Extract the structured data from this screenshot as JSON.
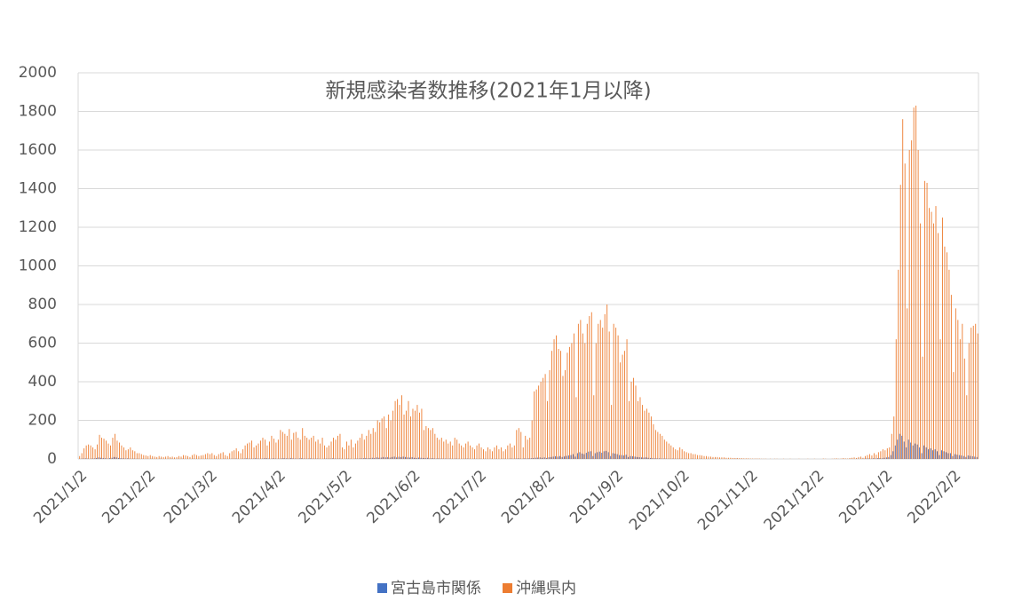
{
  "chart_data": {
    "type": "bar",
    "title": "新規感染者数推移(2021年1月以降)",
    "categories": [
      "2021/1/2",
      null,
      null,
      null,
      null,
      null,
      null,
      null,
      null,
      null,
      null,
      null,
      null,
      null,
      null,
      null,
      null,
      null,
      null,
      null,
      null,
      null,
      null,
      null,
      null,
      null,
      null,
      null,
      null,
      null,
      null,
      "2021/2/2",
      null,
      null,
      null,
      null,
      null,
      null,
      null,
      null,
      null,
      null,
      null,
      null,
      null,
      null,
      null,
      null,
      null,
      null,
      null,
      null,
      null,
      null,
      null,
      null,
      null,
      null,
      null,
      "2021/3/2",
      null,
      null,
      null,
      null,
      null,
      null,
      null,
      null,
      null,
      null,
      null,
      null,
      null,
      null,
      null,
      null,
      null,
      null,
      null,
      null,
      null,
      null,
      null,
      null,
      null,
      null,
      null,
      null,
      null,
      null,
      "2021/4/2",
      null,
      null,
      null,
      null,
      null,
      null,
      null,
      null,
      null,
      null,
      null,
      null,
      null,
      null,
      null,
      null,
      null,
      null,
      null,
      null,
      null,
      null,
      null,
      null,
      null,
      null,
      null,
      null,
      null,
      "2021/5/2",
      null,
      null,
      null,
      null,
      null,
      null,
      null,
      null,
      null,
      null,
      null,
      null,
      null,
      null,
      null,
      null,
      null,
      null,
      null,
      null,
      null,
      null,
      null,
      null,
      null,
      null,
      null,
      null,
      null,
      null,
      "2021/6/2",
      null,
      null,
      null,
      null,
      null,
      null,
      null,
      null,
      null,
      null,
      null,
      null,
      null,
      null,
      null,
      null,
      null,
      null,
      null,
      null,
      null,
      null,
      null,
      null,
      null,
      null,
      null,
      null,
      null,
      "2021/7/2",
      null,
      null,
      null,
      null,
      null,
      null,
      null,
      null,
      null,
      null,
      null,
      null,
      null,
      null,
      null,
      null,
      null,
      null,
      null,
      null,
      null,
      null,
      null,
      null,
      null,
      null,
      null,
      null,
      null,
      null,
      "2021/8/2",
      null,
      null,
      null,
      null,
      null,
      null,
      null,
      null,
      null,
      null,
      null,
      null,
      null,
      null,
      null,
      null,
      null,
      null,
      null,
      null,
      null,
      null,
      null,
      null,
      null,
      null,
      null,
      null,
      null,
      null,
      "2021/9/2",
      null,
      null,
      null,
      null,
      null,
      null,
      null,
      null,
      null,
      null,
      null,
      null,
      null,
      null,
      null,
      null,
      null,
      null,
      null,
      null,
      null,
      null,
      null,
      null,
      null,
      null,
      null,
      null,
      null,
      "2021/10/2",
      null,
      null,
      null,
      null,
      null,
      null,
      null,
      null,
      null,
      null,
      null,
      null,
      null,
      null,
      null,
      null,
      null,
      null,
      null,
      null,
      null,
      null,
      null,
      null,
      null,
      null,
      null,
      null,
      null,
      null,
      "2021/11/2",
      null,
      null,
      null,
      null,
      null,
      null,
      null,
      null,
      null,
      null,
      null,
      null,
      null,
      null,
      null,
      null,
      null,
      null,
      null,
      null,
      null,
      null,
      null,
      null,
      null,
      null,
      null,
      null,
      null,
      "2021/12/2",
      null,
      null,
      null,
      null,
      null,
      null,
      null,
      null,
      null,
      null,
      null,
      null,
      null,
      null,
      null,
      null,
      null,
      null,
      null,
      null,
      null,
      null,
      null,
      null,
      null,
      null,
      null,
      null,
      null,
      null,
      "2022/1/2",
      null,
      null,
      null,
      null,
      null,
      null,
      null,
      null,
      null,
      null,
      null,
      null,
      null,
      null,
      null,
      null,
      null,
      null,
      null,
      null,
      null,
      null,
      null,
      null,
      null,
      null,
      null,
      null,
      null,
      null,
      "2022/2/2",
      null,
      null,
      null,
      null,
      null,
      null,
      null,
      null,
      null,
      null,
      null
    ],
    "series": [
      {
        "name": "宮古島市関係",
        "color": "#4472c4",
        "values": [
          0,
          1,
          2,
          3,
          2,
          1,
          2,
          3,
          5,
          8,
          6,
          5,
          3,
          2,
          4,
          6,
          10,
          8,
          5,
          4,
          3,
          2,
          3,
          2,
          1,
          2,
          1,
          1,
          0,
          1,
          0,
          0,
          0,
          1,
          0,
          0,
          0,
          1,
          0,
          0,
          0,
          0,
          1,
          0,
          0,
          0,
          0,
          1,
          0,
          0,
          0,
          0,
          1,
          0,
          0,
          0,
          0,
          0,
          1,
          0,
          0,
          0,
          1,
          0,
          0,
          0,
          1,
          0,
          0,
          1,
          1,
          2,
          1,
          0,
          1,
          2,
          3,
          2,
          1,
          2,
          3,
          2,
          1,
          2,
          3,
          4,
          2,
          1,
          3,
          2,
          1,
          2,
          3,
          4,
          3,
          2,
          5,
          3,
          2,
          1,
          3,
          4,
          2,
          1,
          2,
          3,
          2,
          1,
          2,
          1,
          0,
          1,
          2,
          1,
          2,
          3,
          2,
          1,
          2,
          1,
          0,
          1,
          2,
          1,
          0,
          1,
          2,
          2,
          3,
          4,
          5,
          3,
          4,
          6,
          5,
          8,
          6,
          7,
          10,
          8,
          9,
          7,
          10,
          12,
          8,
          11,
          9,
          12,
          10,
          8,
          7,
          9,
          6,
          5,
          7,
          6,
          5,
          4,
          6,
          3,
          4,
          3,
          2,
          3,
          2,
          2,
          2,
          1,
          2,
          1,
          1,
          2,
          1,
          0,
          1,
          1,
          2,
          1,
          0,
          1,
          1,
          0,
          1,
          0,
          1,
          0,
          0,
          1,
          0,
          1,
          0,
          0,
          1,
          1,
          0,
          1,
          2,
          1,
          2,
          3,
          2,
          1,
          3,
          2,
          3,
          4,
          5,
          6,
          7,
          8,
          6,
          8,
          5,
          9,
          10,
          12,
          14,
          12,
          15,
          10,
          13,
          16,
          18,
          20,
          25,
          12,
          30,
          35,
          28,
          25,
          32,
          38,
          40,
          15,
          30,
          35,
          38,
          32,
          40,
          42,
          35,
          15,
          30,
          28,
          25,
          20,
          20,
          18,
          22,
          10,
          15,
          14,
          12,
          10,
          9,
          8,
          7,
          8,
          6,
          5,
          4,
          3,
          3,
          3,
          2,
          2,
          2,
          1,
          1,
          2,
          1,
          1,
          1,
          1,
          0,
          1,
          0,
          0,
          1,
          0,
          0,
          0,
          1,
          0,
          0,
          0,
          0,
          1,
          0,
          0,
          0,
          0,
          0,
          0,
          0,
          0,
          0,
          0,
          1,
          0,
          0,
          0,
          0,
          0,
          0,
          0,
          0,
          0,
          0,
          0,
          0,
          0,
          0,
          0,
          0,
          0,
          0,
          0,
          0,
          0,
          0,
          0,
          0,
          0,
          0,
          0,
          0,
          0,
          0,
          0,
          0,
          0,
          0,
          0,
          0,
          0,
          0,
          0,
          0,
          0,
          0,
          0,
          0,
          0,
          0,
          0,
          0,
          0,
          0,
          0,
          0,
          0,
          0,
          1,
          0,
          1,
          1,
          2,
          2,
          1,
          3,
          2,
          4,
          5,
          3,
          6,
          8,
          10,
          20,
          40,
          70,
          100,
          130,
          120,
          90,
          60,
          100,
          85,
          70,
          80,
          75,
          60,
          30,
          70,
          60,
          50,
          55,
          45,
          50,
          40,
          20,
          45,
          40,
          35,
          30,
          30,
          15,
          25,
          22,
          20,
          18,
          15,
          10,
          18,
          16,
          14,
          12,
          10
        ]
      },
      {
        "name": "沖縄県内",
        "color": "#ed7d31",
        "values": [
          15,
          30,
          55,
          70,
          75,
          70,
          60,
          50,
          75,
          125,
          110,
          105,
          95,
          80,
          70,
          110,
          130,
          95,
          85,
          70,
          60,
          45,
          50,
          60,
          45,
          40,
          30,
          30,
          25,
          20,
          18,
          15,
          20,
          15,
          12,
          10,
          15,
          12,
          10,
          12,
          15,
          10,
          12,
          8,
          10,
          15,
          12,
          20,
          18,
          15,
          10,
          20,
          25,
          20,
          15,
          18,
          20,
          25,
          30,
          25,
          30,
          20,
          15,
          25,
          30,
          35,
          20,
          15,
          30,
          40,
          45,
          55,
          40,
          30,
          50,
          70,
          80,
          85,
          95,
          60,
          70,
          80,
          95,
          110,
          100,
          70,
          90,
          120,
          105,
          85,
          100,
          150,
          140,
          130,
          120,
          155,
          100,
          135,
          140,
          110,
          100,
          160,
          120,
          110,
          100,
          110,
          120,
          90,
          100,
          80,
          110,
          70,
          60,
          70,
          90,
          110,
          100,
          120,
          130,
          60,
          50,
          90,
          70,
          100,
          60,
          80,
          95,
          110,
          130,
          100,
          120,
          150,
          130,
          160,
          140,
          200,
          190,
          210,
          220,
          160,
          230,
          200,
          250,
          300,
          310,
          280,
          330,
          230,
          250,
          300,
          220,
          260,
          250,
          280,
          240,
          260,
          150,
          170,
          160,
          150,
          160,
          130,
          110,
          100,
          110,
          90,
          100,
          80,
          90,
          70,
          110,
          100,
          80,
          70,
          60,
          80,
          90,
          70,
          60,
          50,
          70,
          80,
          60,
          50,
          40,
          60,
          50,
          40,
          60,
          70,
          50,
          60,
          40,
          50,
          70,
          80,
          60,
          70,
          150,
          160,
          140,
          60,
          120,
          100,
          110,
          200,
          350,
          360,
          380,
          400,
          420,
          440,
          300,
          460,
          560,
          620,
          640,
          570,
          560,
          430,
          460,
          550,
          580,
          600,
          650,
          320,
          700,
          720,
          650,
          600,
          700,
          740,
          760,
          330,
          600,
          700,
          720,
          680,
          750,
          800,
          660,
          280,
          700,
          680,
          640,
          500,
          540,
          560,
          620,
          300,
          400,
          420,
          380,
          300,
          320,
          280,
          250,
          260,
          240,
          220,
          180,
          150,
          140,
          130,
          120,
          100,
          90,
          80,
          70,
          60,
          50,
          45,
          60,
          50,
          40,
          35,
          30,
          30,
          25,
          25,
          20,
          20,
          18,
          15,
          15,
          12,
          12,
          10,
          10,
          10,
          8,
          8,
          8,
          6,
          6,
          6,
          5,
          5,
          5,
          4,
          4,
          3,
          3,
          3,
          2,
          2,
          2,
          2,
          2,
          1,
          1,
          1,
          0,
          1,
          0,
          1,
          1,
          0,
          0,
          1,
          0,
          0,
          1,
          0,
          0,
          0,
          1,
          0,
          0,
          0,
          1,
          0,
          0,
          1,
          0,
          0,
          0,
          2,
          1,
          0,
          0,
          1,
          2,
          3,
          1,
          2,
          4,
          3,
          2,
          5,
          6,
          8,
          5,
          10,
          12,
          6,
          15,
          20,
          25,
          18,
          30,
          22,
          35,
          40,
          50,
          45,
          55,
          60,
          130,
          220,
          620,
          980,
          1420,
          1760,
          1530,
          780,
          1600,
          1650,
          1820,
          1830,
          1600,
          1220,
          530,
          1440,
          1430,
          1300,
          1280,
          1220,
          1310,
          1170,
          620,
          1250,
          1100,
          1070,
          980,
          850,
          450,
          780,
          720,
          620,
          700,
          520,
          330,
          600,
          680,
          690,
          700,
          650
        ]
      }
    ],
    "ylim": [
      0,
      2000
    ],
    "yticks": [
      0,
      200,
      400,
      600,
      800,
      1000,
      1200,
      1400,
      1600,
      1800,
      2000
    ],
    "grid": true,
    "legend": "bottom"
  }
}
